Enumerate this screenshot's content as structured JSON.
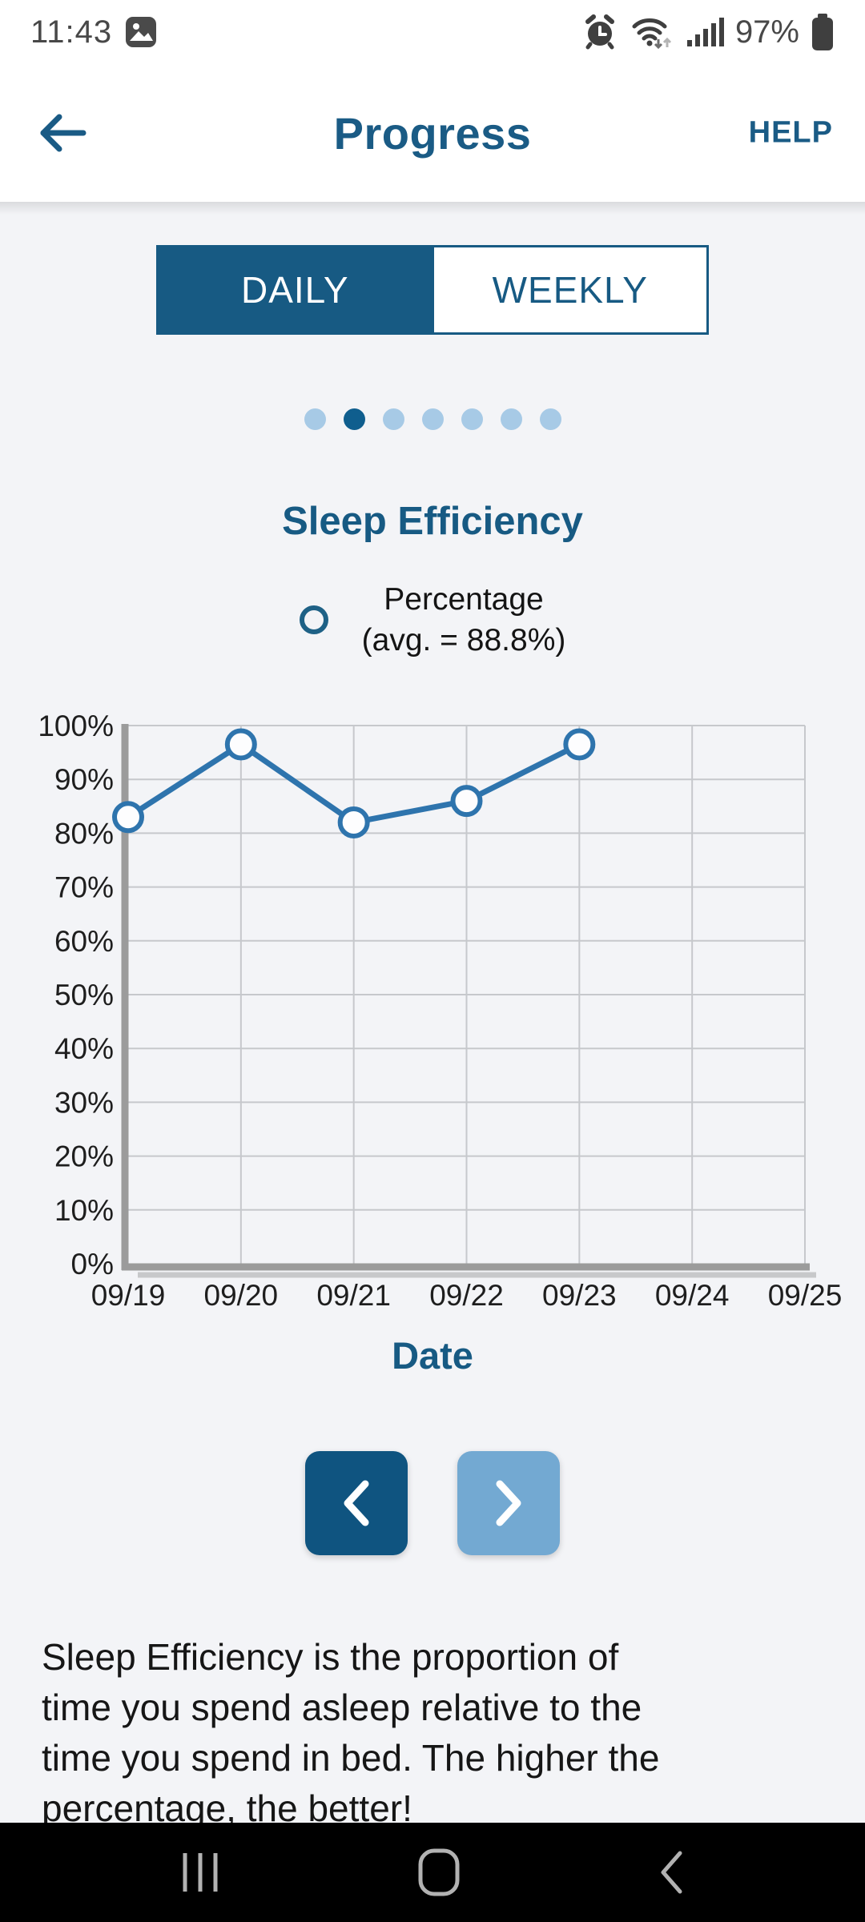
{
  "status_bar": {
    "time": "11:43",
    "battery_level": "97%",
    "icons": [
      "gallery-icon",
      "alarm-icon",
      "wifi-icon",
      "signal-icon",
      "battery-icon"
    ]
  },
  "header": {
    "title": "Progress",
    "help_label": "HELP",
    "back_icon": "arrow-left"
  },
  "view_toggle": {
    "options": [
      {
        "label": "DAILY",
        "active": true
      },
      {
        "label": "WEEKLY",
        "active": false
      }
    ]
  },
  "carousel_dots": {
    "count": 7,
    "active_index": 1
  },
  "chart_section": {
    "title": "Sleep Efficiency",
    "legend_line1": "Percentage",
    "legend_line2": "(avg. = 88.8%)",
    "x_axis_title": "Date"
  },
  "chart_data": {
    "type": "line",
    "title": "Sleep Efficiency",
    "xlabel": "Date",
    "ylabel": "",
    "x_ticks": [
      "09/19",
      "09/20",
      "09/21",
      "09/22",
      "09/23",
      "09/24",
      "09/25"
    ],
    "y_ticks": [
      "0%",
      "10%",
      "20%",
      "30%",
      "40%",
      "50%",
      "60%",
      "70%",
      "80%",
      "90%",
      "100%"
    ],
    "ylim": [
      0,
      100
    ],
    "grid": true,
    "legend": "Percentage (avg. = 88.8%)",
    "average_pct": 88.8,
    "line_color": "#2e74ad",
    "marker": "open-circle",
    "series": [
      {
        "name": "Percentage",
        "x": [
          "09/19",
          "09/20",
          "09/21",
          "09/22",
          "09/23"
        ],
        "values": [
          83,
          96.5,
          82,
          86,
          96.5
        ]
      }
    ]
  },
  "pagination": {
    "prev_icon": "chevron-left",
    "next_icon": "chevron-right"
  },
  "description": {
    "lines": [
      "Sleep Efficiency is the proportion of",
      "time you spend asleep relative to the",
      "time you spend in bed. The higher the",
      "percentage, the better!"
    ]
  },
  "nav_bar": {
    "icons": [
      "recents-icon",
      "home-icon",
      "back-icon"
    ]
  },
  "colors": {
    "primary_blue": "#175a83",
    "dark_button_blue": "#0f5480",
    "light_button_blue": "#73a9d2",
    "dot_inactive_blue": "#a7cae6",
    "chart_line_blue": "#2e74ad",
    "page_background": "#f3f4f7",
    "nav_bar_background": "#000000"
  }
}
